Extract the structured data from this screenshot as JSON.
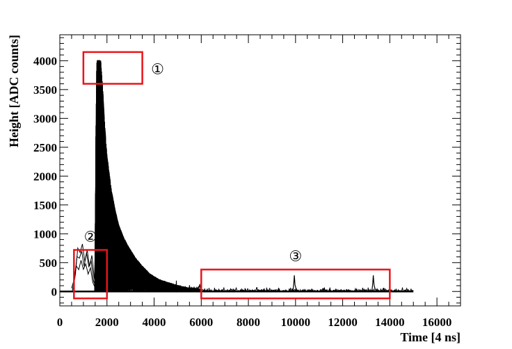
{
  "chart_data": {
    "type": "line",
    "description_free": true,
    "xlabel": "Time [4 ns]",
    "ylabel": "Height [ADC counts]",
    "xlim": [
      0,
      17000
    ],
    "ylim": [
      -250,
      4450
    ],
    "xticks": [
      0,
      2000,
      4000,
      6000,
      8000,
      10000,
      12000,
      14000,
      16000
    ],
    "yticks": [
      0,
      500,
      1000,
      1500,
      2000,
      2500,
      3000,
      3500,
      4000
    ],
    "tick_labels_x": [
      "0",
      "2000",
      "4000",
      "6000",
      "8000",
      "10000",
      "12000",
      "14000",
      "16000"
    ],
    "tick_labels_y": [
      "0",
      "500",
      "1000",
      "1500",
      "2000",
      "2500",
      "3000",
      "3500",
      "4000"
    ],
    "baseline": {
      "x": [
        0,
        15000
      ],
      "y": [
        0,
        0
      ]
    },
    "saturation_level": 4000,
    "main_pulse_envelope": {
      "x": [
        1480,
        1520,
        1560,
        1600,
        1650,
        1700,
        1800,
        1900,
        2000,
        2100,
        2200,
        2350,
        2500,
        2700,
        2900,
        3200,
        3500,
        3800,
        4200,
        4600,
        5000,
        5500,
        6000
      ],
      "y": [
        0,
        2500,
        3700,
        4000,
        4000,
        4000,
        3500,
        2800,
        2250,
        1950,
        1650,
        1350,
        1100,
        900,
        750,
        560,
        420,
        300,
        200,
        150,
        100,
        60,
        40
      ]
    },
    "small_pulses": {
      "x": [
        500,
        600,
        700,
        800,
        900,
        1000,
        1100,
        1200,
        1300,
        1400,
        1500,
        1600
      ],
      "y": [
        0,
        250,
        600,
        520,
        650,
        450,
        620,
        380,
        540,
        200,
        60,
        0
      ]
    },
    "late_spikes": [
      {
        "x": 9950,
        "y": 280
      },
      {
        "x": 13300,
        "y": 280
      }
    ],
    "annotations": [
      {
        "label": "①",
        "box_x": [
          1000,
          3500
        ],
        "box_y": [
          3600,
          4150
        ]
      },
      {
        "label": "②",
        "box_x": [
          600,
          2000
        ],
        "box_y": [
          -120,
          720
        ]
      },
      {
        "label": "③",
        "box_x": [
          6000,
          14000
        ],
        "box_y": [
          -120,
          380
        ]
      }
    ],
    "colors": {
      "data": "#000000",
      "box": "#e8141a",
      "frame": "#000000"
    }
  }
}
